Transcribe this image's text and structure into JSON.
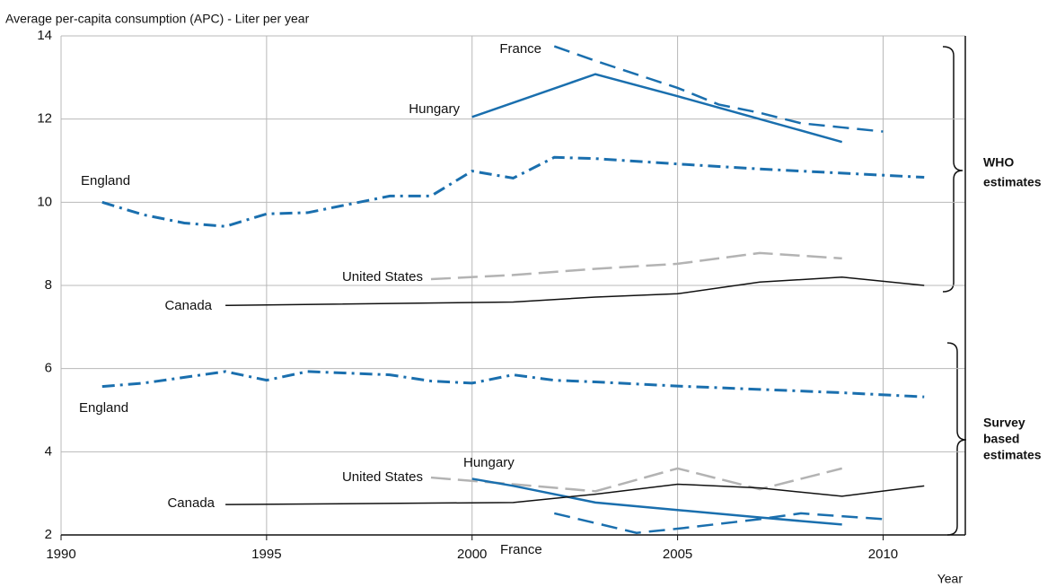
{
  "chart_data": {
    "type": "line",
    "y_axis_title": "Average per-capita consumption (APC) - Liter per year",
    "x_axis_title": "Year",
    "xlim": [
      1990,
      2012
    ],
    "ylim": [
      2,
      14
    ],
    "xticks": [
      1990,
      1995,
      2000,
      2005,
      2010
    ],
    "yticks": [
      2,
      4,
      6,
      8,
      10,
      12,
      14
    ],
    "grid": true,
    "group_labels": [
      [
        "WHO",
        "estimates"
      ],
      [
        "Survey",
        "based",
        "estimates"
      ]
    ],
    "series": [
      {
        "name": "France",
        "color": "#1a6fae",
        "style": "dashed",
        "x": [
          2002,
          2003,
          2005,
          2006,
          2007,
          2008,
          2009,
          2010
        ],
        "values": [
          13.75,
          13.4,
          12.75,
          12.35,
          12.15,
          11.9,
          11.8,
          11.7
        ]
      },
      {
        "name": "Hungary",
        "color": "#1a6fae",
        "style": "solid",
        "x": [
          2000,
          2003,
          2005,
          2007,
          2009
        ],
        "values": [
          12.05,
          13.08,
          12.55,
          12.0,
          11.45
        ]
      },
      {
        "name": "England",
        "color": "#1a6fae",
        "style": "dashdot",
        "x": [
          1991,
          1992,
          1993,
          1994,
          1995,
          1996,
          1997,
          1998,
          1999,
          2000,
          2001,
          2002,
          2003,
          2005,
          2007,
          2009,
          2011
        ],
        "values": [
          10.0,
          9.7,
          9.5,
          9.42,
          9.72,
          9.75,
          9.95,
          10.15,
          10.15,
          10.75,
          10.58,
          11.08,
          11.05,
          10.92,
          10.8,
          10.7,
          10.6
        ]
      },
      {
        "name": "United States",
        "color": "#b3b3b3",
        "style": "longdash",
        "x": [
          1999,
          2001,
          2003,
          2005,
          2007,
          2009
        ],
        "values": [
          8.15,
          8.25,
          8.4,
          8.52,
          8.78,
          8.65
        ]
      },
      {
        "name": "Canada",
        "color": "#111111",
        "style": "thin",
        "x": [
          1994,
          2001,
          2003,
          2005,
          2007,
          2009,
          2011
        ],
        "values": [
          7.52,
          7.6,
          7.72,
          7.8,
          8.08,
          8.2,
          8.0
        ]
      },
      {
        "name": "England",
        "color": "#1a6fae",
        "style": "dashdot",
        "x": [
          1991,
          1992,
          1994,
          1995,
          1996,
          1998,
          1999,
          2000,
          2001,
          2002,
          2003,
          2005,
          2007,
          2009,
          2011
        ],
        "values": [
          5.57,
          5.65,
          5.93,
          5.72,
          5.93,
          5.85,
          5.7,
          5.65,
          5.85,
          5.72,
          5.68,
          5.58,
          5.5,
          5.42,
          5.32
        ]
      },
      {
        "name": "United States",
        "color": "#b3b3b3",
        "style": "longdash",
        "x": [
          1999,
          2001,
          2003,
          2005,
          2007,
          2009
        ],
        "values": [
          3.38,
          3.22,
          3.05,
          3.6,
          3.1,
          3.6
        ]
      },
      {
        "name": "Hungary",
        "color": "#1a6fae",
        "style": "solid",
        "x": [
          2000,
          2001,
          2003,
          2005,
          2007,
          2009
        ],
        "values": [
          3.35,
          3.18,
          2.78,
          2.6,
          2.42,
          2.25
        ]
      },
      {
        "name": "France",
        "color": "#1a6fae",
        "style": "dashed",
        "x": [
          2002,
          2004,
          2005,
          2007,
          2008,
          2010
        ],
        "values": [
          2.52,
          2.05,
          2.15,
          2.38,
          2.52,
          2.38
        ]
      },
      {
        "name": "Canada",
        "color": "#111111",
        "style": "thin",
        "x": [
          1994,
          2001,
          2003,
          2005,
          2007,
          2009,
          2011
        ],
        "values": [
          2.73,
          2.78,
          2.98,
          3.22,
          3.13,
          2.93,
          3.18
        ]
      }
    ]
  }
}
